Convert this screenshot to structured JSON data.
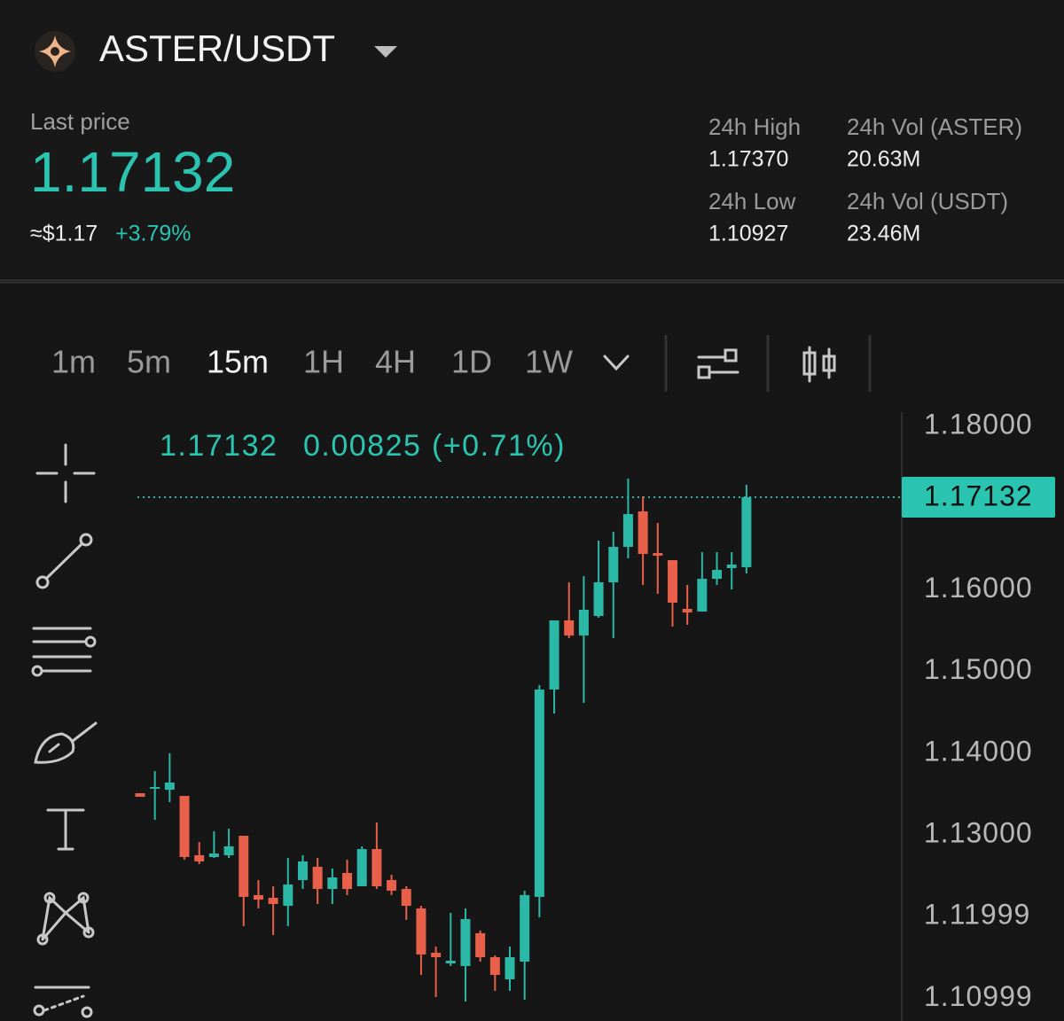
{
  "header": {
    "pair": "ASTER/USDT",
    "last_price_label": "Last price",
    "last_price": "1.17132",
    "usd_price": "≈$1.17",
    "change": "+3.79%",
    "stats": [
      {
        "label": "24h High",
        "value": "1.17370"
      },
      {
        "label": "24h Vol (ASTER)",
        "value": "20.63M"
      },
      {
        "label": "24h Low",
        "value": "1.10927"
      },
      {
        "label": "24h Vol (USDT)",
        "value": "23.46M"
      }
    ]
  },
  "toolbar": {
    "intervals": [
      "1m",
      "5m",
      "15m",
      "1H",
      "4H",
      "1D",
      "1W"
    ],
    "active_interval": 2
  },
  "chart_data": {
    "type": "candlestick",
    "info": {
      "close": 1.17132,
      "change": 0.00825,
      "change_pct": "(+0.71%)"
    },
    "up_color": "#2bb8a7",
    "down_color": "#e8604a",
    "price_line": 1.17132,
    "ylim": [
      1.10722,
      1.18174
    ],
    "yticks": [
      {
        "value": 1.18,
        "label": "1.18000"
      },
      {
        "value": 1.16,
        "label": "1.16000"
      },
      {
        "value": 1.15,
        "label": "1.15000"
      },
      {
        "value": 1.14,
        "label": "1.14000"
      },
      {
        "value": 1.13,
        "label": "1.13000"
      },
      {
        "value": 1.11999,
        "label": "1.11999"
      },
      {
        "value": 1.10999,
        "label": "1.10999"
      }
    ],
    "open": [
      1.1351,
      1.13564,
      1.13553,
      1.13477,
      1.12751,
      1.12729,
      1.12751,
      1.12989,
      1.12263,
      1.1223,
      1.12132,
      1.12447,
      1.1261,
      1.12338,
      1.12534,
      1.12371,
      1.12826,
      1.12447,
      1.12338,
      1.121,
      1.11557,
      1.11427,
      1.11395,
      1.11796,
      1.11503,
      1.11232,
      1.11449,
      1.12241,
      1.14779,
      1.15625,
      1.1544,
      1.15679,
      1.16091,
      1.16525,
      1.16959,
      1.16449,
      1.16362,
      1.15766,
      1.15733,
      1.16134,
      1.16265,
      1.16276
    ],
    "high": [
      1.1351,
      1.13781,
      1.13998,
      1.13477,
      1.12913,
      1.13043,
      1.13076,
      1.12989,
      1.12447,
      1.12371,
      1.12718,
      1.12751,
      1.12718,
      1.12588,
      1.12696,
      1.12859,
      1.13152,
      1.12512,
      1.12371,
      1.12132,
      1.11633,
      1.12046,
      1.121,
      1.11829,
      1.11525,
      1.11633,
      1.12317,
      1.14833,
      1.15625,
      1.16091,
      1.16167,
      1.16601,
      1.16709,
      1.1736,
      1.17143,
      1.16818,
      1.16362,
      1.16059,
      1.1646,
      1.1646,
      1.1646,
      1.17284
    ],
    "low": [
      1.13466,
      1.13184,
      1.13401,
      1.12696,
      1.12642,
      1.12718,
      1.12718,
      1.11883,
      1.121,
      1.11774,
      1.11883,
      1.12338,
      1.12154,
      1.12154,
      1.12263,
      1.12371,
      1.12338,
      1.12263,
      1.11959,
      1.11286,
      1.11015,
      1.11395,
      1.10961,
      1.11449,
      1.11091,
      1.11091,
      1.10983,
      1.11991,
      1.14486,
      1.15408,
      1.14616,
      1.15657,
      1.15408,
      1.16384,
      1.16059,
      1.1595,
      1.15549,
      1.15571,
      1.15733,
      1.16059,
      1.16004,
      1.162
    ],
    "close": [
      1.13466,
      1.13586,
      1.1364,
      1.12729,
      1.12675,
      1.12772,
      1.12859,
      1.12241,
      1.12208,
      1.12154,
      1.12393,
      1.12675,
      1.12338,
      1.12479,
      1.12338,
      1.12826,
      1.12371,
      1.12317,
      1.12132,
      1.11536,
      1.11503,
      1.1146,
      1.1197,
      1.11503,
      1.11286,
      1.11503,
      1.12263,
      1.14779,
      1.15625,
      1.1544,
      1.15755,
      1.16091,
      1.16525,
      1.16926,
      1.16438,
      1.16417,
      1.15842,
      1.15722,
      1.16134,
      1.16243,
      1.16308,
      1.17132
    ]
  }
}
